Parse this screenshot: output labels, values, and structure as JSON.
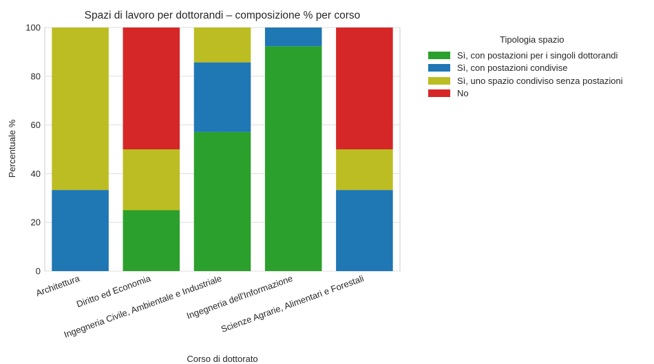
{
  "chart_data": {
    "type": "bar",
    "stacked": true,
    "title": "Spazi di lavoro per dottorandi – composizione % per corso",
    "xlabel": "Corso di dottorato",
    "ylabel": "Percentuale %",
    "ylim": [
      0,
      100
    ],
    "yticks": [
      0,
      20,
      40,
      60,
      80,
      100
    ],
    "grid": true,
    "legend_title": "Tipologia spazio",
    "legend_position": "outside-right-top",
    "categories": [
      "Architettura",
      "Diritto ed Economia",
      "Ingegneria Civile, Ambientale e Industriale",
      "Ingegneria dell'Informazione",
      "Scienze Agrarie, Alimentari e Forestali"
    ],
    "series": [
      {
        "name": "Sì, con postazioni per i singoli dottorandi",
        "color": "#2ca02c",
        "values": [
          0,
          25,
          57.1,
          92.3,
          0
        ]
      },
      {
        "name": "Sì, con postazioni condivise",
        "color": "#1f77b4",
        "values": [
          33.3,
          0,
          28.6,
          7.7,
          33.3
        ]
      },
      {
        "name": "Sì, uno spazio condiviso senza postazioni",
        "color": "#bcbd22",
        "values": [
          66.7,
          25,
          14.3,
          0,
          16.7
        ]
      },
      {
        "name": "No",
        "color": "#d62728",
        "values": [
          0,
          50,
          0,
          0,
          50
        ]
      }
    ]
  }
}
